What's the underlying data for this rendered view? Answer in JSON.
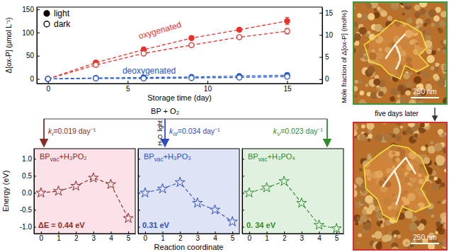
{
  "chart_data": [
    {
      "type": "line",
      "xlabel": "Storage time (day)",
      "ylabel": "Δ[ox-P] (μmol L⁻¹)",
      "y2label": "Mole fraction of Δ[ox-P] (mol%)",
      "x": [
        0,
        3,
        6,
        9,
        12,
        15
      ],
      "xlim": [
        -0.7,
        17.2
      ],
      "xticks": [
        0,
        5,
        10,
        15
      ],
      "ylim": [
        -10,
        155
      ],
      "yticks": [
        0,
        50,
        100,
        150
      ],
      "y2lim": [
        -1,
        16.3
      ],
      "y2ticks": [
        0,
        5,
        10,
        15
      ],
      "legend": "upper left",
      "annotations": [
        {
          "text": "oxygenated",
          "color": "#e8312a"
        },
        {
          "text": "deoxygenated",
          "color": "#2455c8"
        }
      ],
      "series": [
        {
          "name": "light",
          "color": "#e8312a",
          "marker": "filled",
          "line_style": "dashed",
          "values": [
            0,
            35,
            63,
            88,
            106,
            125
          ],
          "errors": [
            4,
            5,
            6,
            4,
            3,
            8
          ]
        },
        {
          "name": "dark",
          "color": "#e8312a",
          "marker": "open",
          "line_style": "dashed",
          "values": [
            0,
            30,
            55,
            73,
            90,
            103
          ],
          "errors": [
            3,
            4,
            5,
            4,
            3,
            6
          ]
        },
        {
          "name": "light",
          "color": "#2455c8",
          "marker": "filled",
          "line_style": "dashed",
          "values": [
            0,
            2,
            3,
            4,
            6,
            8
          ],
          "errors": [
            3,
            3,
            3,
            3,
            3,
            5
          ]
        },
        {
          "name": "dark",
          "color": "#2455c8",
          "marker": "open",
          "line_style": "dashed",
          "values": [
            0,
            1,
            1,
            2,
            3,
            5
          ],
          "errors": [
            2,
            2,
            2,
            2,
            2,
            3
          ]
        }
      ]
    },
    {
      "type": "line",
      "title": [
        "BP",
        "vac",
        "+H₃PO₂"
      ],
      "annotation": "ΔE = 0.44 eV",
      "ylabel": "Energy (eV)",
      "x": [
        0,
        1,
        2,
        3,
        4,
        5
      ],
      "xlim": [
        -0.4,
        5.4
      ],
      "xticks": [
        0,
        1,
        2,
        3,
        4,
        5
      ],
      "ylim": [
        -1.2,
        1.3
      ],
      "yticks": [
        {
          "value": -1,
          "label": "-1.0"
        },
        {
          "value": -0.5,
          "label": "-0.5"
        },
        {
          "value": 0,
          "label": "0.0"
        },
        {
          "value": 0.5,
          "label": "0.5"
        },
        {
          "value": 1,
          "label": "1.0"
        }
      ],
      "values": [
        0,
        0.05,
        0.2,
        0.44,
        0.25,
        -0.75
      ],
      "color": "#8b2a2a",
      "marker": "star",
      "line_style": "dashed"
    },
    {
      "type": "line",
      "title": [
        "BP",
        "vac",
        "+H₃PO₃"
      ],
      "annotation": "0.31 eV",
      "xlabel": "Reaction coordinate",
      "x": [
        0,
        1,
        2,
        3,
        4,
        5
      ],
      "xlim": [
        -0.4,
        5.4
      ],
      "xticks": [
        0,
        1,
        2,
        3,
        4,
        5
      ],
      "ylim": [
        -1.2,
        1.3
      ],
      "yticks": [
        -1,
        -0.5,
        0,
        0.5,
        1
      ],
      "tick_labels": "x",
      "values": [
        0,
        0.12,
        0.31,
        -0.3,
        -0.5,
        -0.85
      ],
      "color": "#2d4fc0",
      "marker": "star",
      "line_style": "dashed"
    },
    {
      "type": "line",
      "title": [
        "BP",
        "vac",
        "+H₃PO₄"
      ],
      "annotation": "0. 34 eV",
      "x": [
        0,
        1,
        2,
        3,
        4,
        5
      ],
      "xlim": [
        -0.4,
        5.4
      ],
      "xticks": [
        0,
        1,
        2,
        3,
        4,
        5
      ],
      "ylim": [
        -1.2,
        1.3
      ],
      "yticks": [
        -1,
        -0.5,
        0,
        0.5,
        1
      ],
      "tick_labels": "x",
      "values": [
        0,
        0.15,
        0.34,
        -0.3,
        -0.95,
        -1.05
      ],
      "color": "#2e8b2e",
      "marker": "star",
      "line_style": "dashed"
    }
  ],
  "reactions": {
    "source": "BP + O₂",
    "conditions": [
      "light",
      "H₂O"
    ],
    "rates": [
      [
        "k",
        "I",
        "=0.019 day⁻¹"
      ],
      [
        "k",
        "III",
        "=0.034 day⁻¹"
      ],
      [
        "k",
        "V",
        "=0.023 day⁻¹"
      ]
    ]
  },
  "images": {
    "caption": "five days later",
    "scale_bars": [
      "250 nm",
      "250 nm"
    ]
  }
}
